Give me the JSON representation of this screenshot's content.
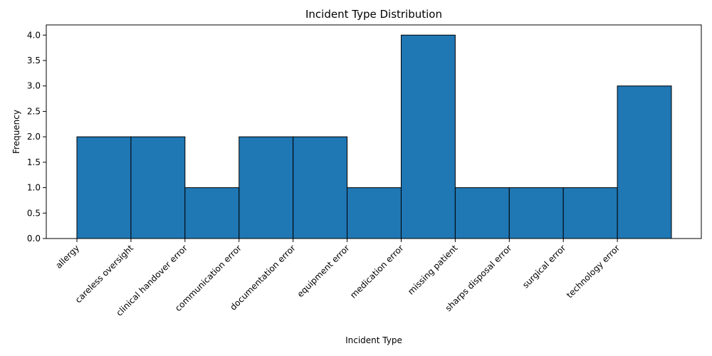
{
  "chart_data": {
    "type": "bar",
    "title": "Incident Type Distribution",
    "xlabel": "Incident Type",
    "ylabel": "Frequency",
    "categories": [
      "allergy",
      "careless oversight",
      "clinical handover error",
      "communication error",
      "documentation error",
      "equipment error",
      "medication error",
      "missing patient",
      "sharps disposal error",
      "surgical error",
      "technology error"
    ],
    "values": [
      2,
      2,
      1,
      2,
      2,
      1,
      4,
      1,
      1,
      1,
      3
    ],
    "ylim": [
      0,
      4.2
    ],
    "yticks": [
      "0.0",
      "0.5",
      "1.0",
      "1.5",
      "2.0",
      "2.5",
      "3.0",
      "3.5",
      "4.0"
    ],
    "bar_color": "#1f77b4",
    "edge_color": "#000000",
    "grid": false
  }
}
